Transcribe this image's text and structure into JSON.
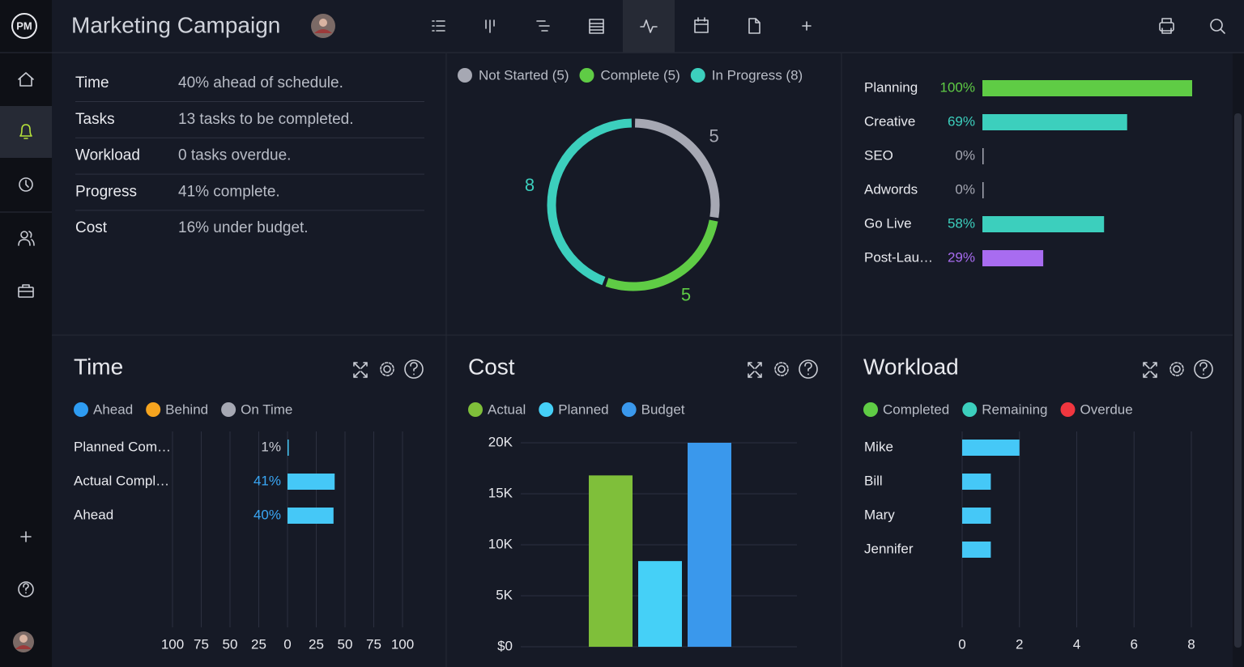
{
  "header": {
    "logo": "PM",
    "title": "Marketing Campaign"
  },
  "summary": {
    "rows": [
      [
        "Time",
        "40% ahead of schedule."
      ],
      [
        "Tasks",
        "13 tasks to be completed."
      ],
      [
        "Workload",
        "0 tasks overdue."
      ],
      [
        "Progress",
        "41% complete."
      ],
      [
        "Cost",
        "16% under budget."
      ]
    ]
  },
  "chart_data": [
    {
      "type": "donut",
      "categories": [
        "Not Started",
        "Complete",
        "In Progress"
      ],
      "legend_labels": [
        "Not Started (5)",
        "Complete (5)",
        "In Progress (8)"
      ],
      "values": [
        5,
        5,
        8
      ],
      "colors": [
        "#a6a8b3",
        "#5fcc45",
        "#3ccfbd"
      ]
    },
    {
      "type": "progress",
      "categories": [
        "Planning",
        "Creative",
        "SEO",
        "Adwords",
        "Go Live",
        "Post-Lau…"
      ],
      "values": [
        100,
        69,
        0,
        0,
        58,
        29
      ],
      "value_labels": [
        "100%",
        "69%",
        "0%",
        "0%",
        "58%",
        "29%"
      ],
      "colors": [
        "#5fcc45",
        "#3ccfbd",
        "#a6a8b3",
        "#a6a8b3",
        "#3ccfbd",
        "#a86cf0"
      ],
      "xlim": [
        0,
        100
      ]
    },
    {
      "type": "diverging",
      "title": "Time",
      "legend": [
        {
          "name": "Ahead",
          "color": "#2e9cf2"
        },
        {
          "name": "Behind",
          "color": "#f5a41f"
        },
        {
          "name": "On Time",
          "color": "#a6a8b3"
        }
      ],
      "categories": [
        "Planned Com…",
        "Actual Compl…",
        "Ahead"
      ],
      "values": [
        1,
        41,
        40
      ],
      "value_labels": [
        "1%",
        "41%",
        "40%"
      ],
      "label_colors": [
        "#c9ccd4",
        "#3aa7f5",
        "#3aa7f5"
      ],
      "color": "#45c8f7",
      "xlim": [
        -100,
        100
      ],
      "xticks": [
        {
          "value": -100,
          "label": "100"
        },
        {
          "value": -75,
          "label": "75"
        },
        {
          "value": -50,
          "label": "50"
        },
        {
          "value": -25,
          "label": "25"
        },
        0,
        25,
        50,
        75,
        100
      ],
      "grid": true
    },
    {
      "type": "column",
      "title": "Cost",
      "categories": [
        null
      ],
      "series": [
        {
          "name": "Actual",
          "color": "#7fbf3a",
          "values": [
            16800
          ]
        },
        {
          "name": "Planned",
          "color": "#45d0f7",
          "values": [
            8400
          ]
        },
        {
          "name": "Budget",
          "color": "#3a98ec",
          "values": [
            20000
          ]
        }
      ],
      "ylim": [
        0,
        20000
      ],
      "yticks": [
        {
          "value": 0,
          "label": "$0"
        },
        {
          "value": 5000,
          "label": "5K"
        },
        {
          "value": 10000,
          "label": "10K"
        },
        {
          "value": 15000,
          "label": "15K"
        },
        {
          "value": 20000,
          "label": "20K"
        }
      ],
      "grid": true
    },
    {
      "type": "bar",
      "title": "Workload",
      "legend": [
        {
          "name": "Completed",
          "color": "#5fcc45"
        },
        {
          "name": "Remaining",
          "color": "#3ccfbd"
        },
        {
          "name": "Overdue",
          "color": "#f0363f"
        }
      ],
      "categories": [
        "Mike",
        "Bill",
        "Mary",
        "Jennifer"
      ],
      "values": [
        2,
        1,
        1,
        1
      ],
      "color": "#45c8f7",
      "xlim": [
        0,
        8
      ],
      "xticks": [
        0,
        2,
        4,
        6,
        8
      ],
      "grid": true
    }
  ]
}
